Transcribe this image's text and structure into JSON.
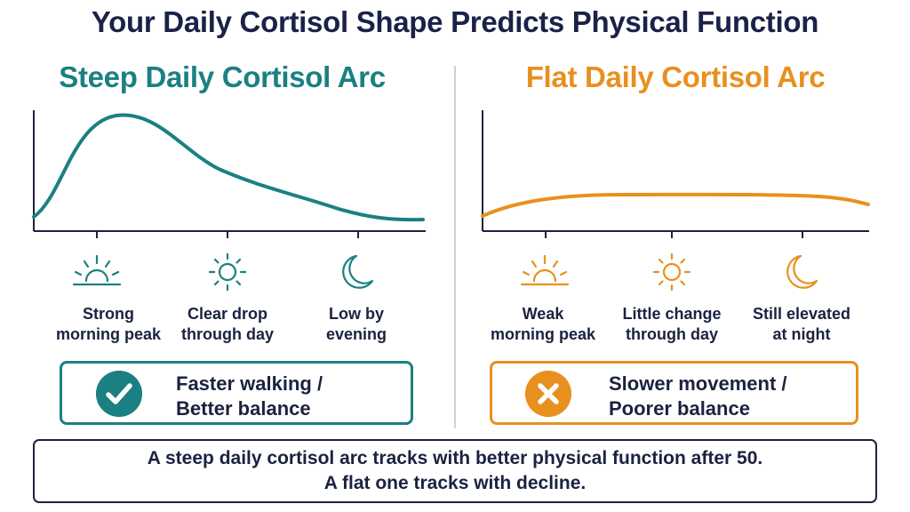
{
  "title": "Your Daily Cortisol Shape Predicts Physical Function",
  "colors": {
    "steep": "#1b8081",
    "flat": "#e8901f",
    "text": "#1b2240"
  },
  "steep": {
    "heading": "Steep Daily Cortisol Arc",
    "phases": [
      {
        "icon": "sunrise-icon",
        "label": "Strong\nmorning peak"
      },
      {
        "icon": "sun-icon",
        "label": "Clear drop\nthrough day"
      },
      {
        "icon": "moon-icon",
        "label": "Low by\nevening"
      }
    ],
    "outcome_icon": "checkmark-icon",
    "outcome": "Faster walking /\nBetter balance"
  },
  "flat": {
    "heading": "Flat Daily Cortisol Arc",
    "phases": [
      {
        "icon": "sunrise-icon",
        "label": "Weak\nmorning peak"
      },
      {
        "icon": "sun-icon",
        "label": "Little change\nthrough day"
      },
      {
        "icon": "moon-icon",
        "label": "Still elevated\nat night"
      }
    ],
    "outcome_icon": "x-icon",
    "outcome": "Slower movement /\nPoorer balance"
  },
  "summary": {
    "line1": "A steep daily cortisol arc tracks with better physical function after 50.",
    "line2": "A flat one tracks with decline."
  }
}
